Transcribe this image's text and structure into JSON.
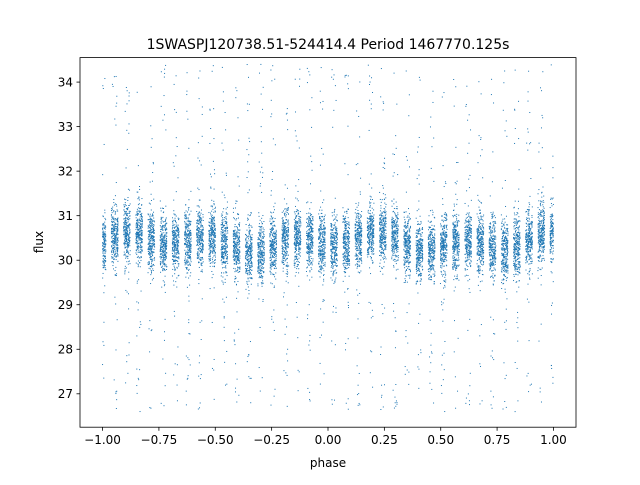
{
  "chart_data": {
    "type": "scatter",
    "title": "1SWASPJ120738.51-524414.4 Period 1467770.125s",
    "xlabel": "phase",
    "ylabel": "flux",
    "xlim": [
      -1.1,
      1.1
    ],
    "ylim": [
      26.25,
      34.55
    ],
    "x_ticks": [
      -1.0,
      -0.75,
      -0.5,
      -0.25,
      0.0,
      0.25,
      0.5,
      0.75,
      1.0
    ],
    "x_tick_labels": [
      "−1.00",
      "−0.75",
      "−0.50",
      "−0.25",
      "0.00",
      "0.25",
      "0.50",
      "0.75",
      "1.00"
    ],
    "y_ticks": [
      27,
      28,
      29,
      30,
      31,
      32,
      33,
      34
    ],
    "y_tick_labels": [
      "27",
      "28",
      "29",
      "30",
      "31",
      "32",
      "33",
      "34"
    ],
    "grid": false,
    "legend": "none",
    "point_color": "#1f77b4",
    "series": [
      {
        "x_range": [
          -1.0,
          1.0
        ],
        "y_core_center": 30.4,
        "y_core_range": [
          29.3,
          31.4
        ],
        "y_full_range": [
          26.6,
          34.4
        ],
        "clusters_per_unit_phase": 18.5
      }
    ]
  }
}
